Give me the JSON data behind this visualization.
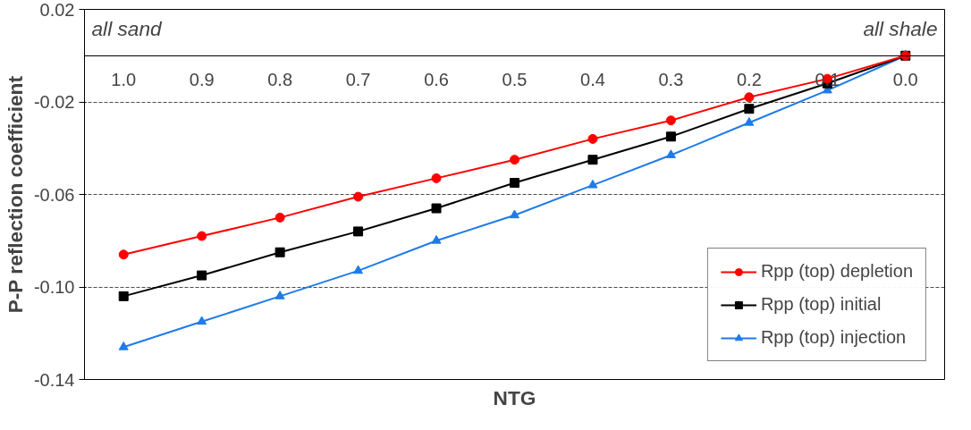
{
  "chart_data": {
    "type": "line",
    "xlabel": "NTG",
    "ylabel": "P-P reflection coefficient",
    "x": [
      1.0,
      0.9,
      0.8,
      0.7,
      0.6,
      0.5,
      0.4,
      0.3,
      0.2,
      0.1,
      0.0
    ],
    "xlim": [
      1.05,
      -0.05
    ],
    "xticks": [
      {
        "value": 1.0,
        "label": "1.0"
      },
      0.9,
      0.8,
      0.7,
      0.6,
      0.5,
      0.4,
      0.3,
      0.2,
      0.1,
      {
        "value": 0.0,
        "label": "0.0"
      }
    ],
    "ylim": [
      -0.14,
      0.02
    ],
    "yticks": [
      0.02,
      -0.02,
      -0.06,
      {
        "value": -0.1,
        "label": "-0.10"
      },
      -0.14
    ],
    "series": [
      {
        "name": "Rpp (top) depletion",
        "color": "#ff0000",
        "marker": "circle",
        "values": [
          -0.086,
          -0.078,
          -0.07,
          -0.061,
          -0.053,
          -0.045,
          -0.036,
          -0.028,
          -0.018,
          -0.01,
          0.0
        ]
      },
      {
        "name": "Rpp (top) initial",
        "color": "#000000",
        "marker": "square",
        "values": [
          -0.104,
          -0.095,
          -0.085,
          -0.076,
          -0.066,
          -0.055,
          -0.045,
          -0.035,
          -0.023,
          -0.012,
          0.0
        ]
      },
      {
        "name": "Rpp (top) injection",
        "color": "#1e7be8",
        "marker": "triangle",
        "values": [
          -0.126,
          -0.115,
          -0.104,
          -0.093,
          -0.08,
          -0.069,
          -0.056,
          -0.043,
          -0.029,
          -0.015,
          0.0
        ]
      }
    ],
    "annotations": [
      "all sand",
      "all shale"
    ],
    "grid": "y",
    "legend": "bottom right",
    "line_style": "solid"
  }
}
